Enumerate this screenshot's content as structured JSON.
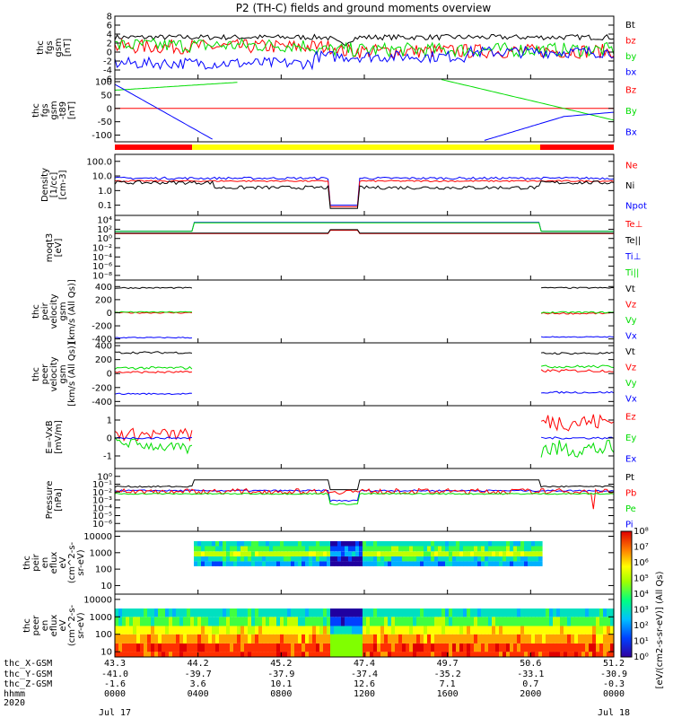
{
  "title": "P2 (TH-C) fields and ground moments overview",
  "colors": {
    "black": "#000000",
    "red": "#ff0000",
    "green": "#00dd00",
    "blue": "#0000ff",
    "yellow": "#ffff00"
  },
  "chart_data": [
    {
      "type": "line",
      "name": "fgs_gsm",
      "ylabel": [
        "thc",
        "fgs",
        "gsm",
        "[nT]"
      ],
      "yticks": [
        "8",
        "6",
        "4",
        "2",
        "0",
        "-2",
        "-4",
        "-6"
      ],
      "ylim": [
        -6,
        8
      ],
      "legend": [
        {
          "label": "Bt",
          "color": "black"
        },
        {
          "label": "bz",
          "color": "red"
        },
        {
          "label": "by",
          "color": "green"
        },
        {
          "label": "bx",
          "color": "blue"
        }
      ]
    },
    {
      "type": "line",
      "name": "fgs_gsm_t89",
      "ylabel": [
        "thc",
        "fgs",
        "gsm",
        "-t89",
        "[nT]"
      ],
      "yticks": [
        "100",
        "50",
        "0",
        "-50",
        "-100"
      ],
      "ylim": [
        -125,
        110
      ],
      "legend": [
        {
          "label": "Bz",
          "color": "red"
        },
        {
          "label": "By",
          "color": "green"
        },
        {
          "label": "Bx",
          "color": "blue"
        }
      ]
    },
    {
      "type": "line",
      "name": "density",
      "ylabel": [
        "Density",
        "[1/cc]",
        "[cm-3]"
      ],
      "yticks": [
        "100.0",
        "10.0",
        "1.0",
        "0.1"
      ],
      "log": true,
      "ylim": [
        0.02,
        300
      ],
      "legend": [
        {
          "label": "Ne",
          "color": "red"
        },
        {
          "label": "Ni",
          "color": "black"
        },
        {
          "label": "Npot",
          "color": "blue"
        }
      ]
    },
    {
      "type": "line",
      "name": "temperature",
      "ylabel": [
        "moqt3",
        "[eV]"
      ],
      "yticks": [
        "10⁴",
        "10²",
        "10⁰",
        "10⁻²",
        "10⁻⁴",
        "10⁻⁶",
        "10⁻⁸"
      ],
      "log": true,
      "ylim": [
        1e-09,
        100000.0
      ],
      "legend": [
        {
          "label": "Te⊥",
          "color": "red"
        },
        {
          "label": "Te||",
          "color": "black"
        },
        {
          "label": "Ti⊥",
          "color": "blue"
        },
        {
          "label": "Ti||",
          "color": "green"
        }
      ]
    },
    {
      "type": "line",
      "name": "peir_velocity",
      "ylabel": [
        "thc",
        "peir",
        "velocity",
        "gsm",
        "[km/s (All Qs)]"
      ],
      "yticks": [
        "400",
        "200",
        "0",
        "-200",
        "-400"
      ],
      "ylim": [
        -460,
        500
      ],
      "legend": [
        {
          "label": "Vt",
          "color": "black"
        },
        {
          "label": "Vz",
          "color": "red"
        },
        {
          "label": "Vy",
          "color": "green"
        },
        {
          "label": "Vx",
          "color": "blue"
        }
      ]
    },
    {
      "type": "line",
      "name": "peer_velocity",
      "ylabel": [
        "thc",
        "peer",
        "velocity",
        "gsm",
        "[km/s (All Qs)]"
      ],
      "yticks": [
        "400",
        "200",
        "0",
        "-200",
        "-400"
      ],
      "ylim": [
        -460,
        440
      ],
      "legend": [
        {
          "label": "Vt",
          "color": "black"
        },
        {
          "label": "Vz",
          "color": "red"
        },
        {
          "label": "Vy",
          "color": "green"
        },
        {
          "label": "Vx",
          "color": "blue"
        }
      ]
    },
    {
      "type": "line",
      "name": "efield",
      "ylabel": [
        "E=-VxB",
        "[mV/m]"
      ],
      "yticks": [
        "1",
        "0",
        "-1"
      ],
      "ylim": [
        -1.7,
        1.8
      ],
      "legend": [
        {
          "label": "Ez",
          "color": "red"
        },
        {
          "label": "Ey",
          "color": "green"
        },
        {
          "label": "Ex",
          "color": "blue"
        }
      ]
    },
    {
      "type": "line",
      "name": "pressure",
      "ylabel": [
        "Pressure",
        "[nPa]"
      ],
      "yticks": [
        "10⁰",
        "10⁻¹",
        "10⁻²",
        "10⁻³",
        "10⁻⁴",
        "10⁻⁵",
        "10⁻⁶"
      ],
      "log": true,
      "ylim": [
        1e-07,
        10
      ],
      "legend": [
        {
          "label": "Pt",
          "color": "black"
        },
        {
          "label": "Pb",
          "color": "red"
        },
        {
          "label": "Pe",
          "color": "green"
        },
        {
          "label": "Pi",
          "color": "blue"
        }
      ]
    },
    {
      "type": "heatmap",
      "name": "peir_en_eflux",
      "ylabel": [
        "thc",
        "peir",
        "en",
        "eflux",
        "eV",
        "(cm^2-s-",
        "sr-eV)"
      ],
      "yticks": [
        "10000",
        "1000",
        "100",
        "10"
      ],
      "log": true,
      "ylim": [
        3,
        20000
      ]
    },
    {
      "type": "heatmap",
      "name": "peer_en_eflux",
      "ylabel": [
        "thc",
        "peer",
        "en",
        "eflux",
        "eV",
        "(cm^2-s-",
        "sr-eV)"
      ],
      "yticks": [
        "10000",
        "1000",
        "100",
        "10"
      ],
      "log": true,
      "ylim": [
        5,
        20000
      ]
    }
  ],
  "colorbar": {
    "label": "[eV/(cm2-s-sr-eV)] (All Qs)",
    "ticks": [
      "10⁸",
      "10⁷",
      "10⁶",
      "10⁵",
      "10⁴",
      "10³",
      "10²",
      "10¹",
      "10⁰"
    ]
  },
  "footer": {
    "row_labels": [
      "thc_X-GSM",
      "thc_Y-GSM",
      "thc_Z-GSM",
      "hhmm",
      "2020"
    ],
    "columns": [
      {
        "x": "43.3",
        "y": "-41.0",
        "z": "-1.6",
        "hhmm": "0000",
        "date": "Jul 17"
      },
      {
        "x": "44.2",
        "y": "-39.7",
        "z": "3.6",
        "hhmm": "0400",
        "date": ""
      },
      {
        "x": "45.2",
        "y": "-37.9",
        "z": "10.1",
        "hhmm": "0800",
        "date": ""
      },
      {
        "x": "47.4",
        "y": "-37.4",
        "z": "12.6",
        "hhmm": "1200",
        "date": ""
      },
      {
        "x": "49.7",
        "y": "-35.2",
        "z": "7.1",
        "hhmm": "1600",
        "date": ""
      },
      {
        "x": "50.6",
        "y": "-33.1",
        "z": "0.7",
        "hhmm": "2000",
        "date": ""
      },
      {
        "x": "51.2",
        "y": "-30.9",
        "z": "-0.3",
        "hhmm": "0000",
        "date": "Jul 18"
      }
    ]
  }
}
